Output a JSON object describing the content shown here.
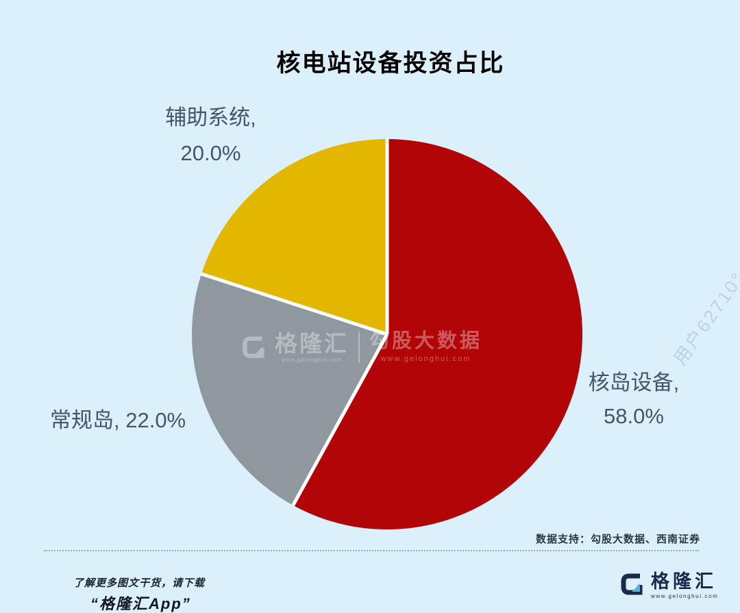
{
  "title": "核电站设备投资占比",
  "chart_data": {
    "type": "pie",
    "title": "核电站设备投资占比",
    "categories": [
      "核岛设备",
      "常规岛",
      "辅助系统"
    ],
    "values": [
      58.0,
      22.0,
      20.0
    ],
    "colors": [
      "#B10507",
      "#90989F",
      "#E3B700"
    ],
    "start_angle_deg_from_top": 0,
    "direction": "clockwise",
    "separator_color": "#FFFFFF",
    "background": "#DCF0FB",
    "label_color": "#44546A",
    "labels": {
      "auxiliary_line1": "辅助系统,",
      "auxiliary_line2": "20.0%",
      "conventional": "常规岛, 22.0%",
      "nuclear_line1": "核岛设备,",
      "nuclear_line2": "58.0%"
    },
    "legend": "none"
  },
  "watermark_center": {
    "brand": "格隆汇",
    "brand_url": "www.gelonghui.com",
    "partner": "勾股大数据",
    "partner_url": "www.gelonghui.com"
  },
  "watermark_side": "用户62710°",
  "footer": {
    "data_support": "数据支持：勾股大数据、西南证券",
    "promo_line1": "了解更多图文干货，请下载",
    "promo_line2": "“格隆汇App”",
    "logo_text": "格隆汇",
    "logo_url": "www.gelonghui.com"
  },
  "colors": {
    "background": "#DCF0FB",
    "red": "#B10507",
    "gray": "#90989F",
    "yellow": "#E3B700",
    "label": "#44546A",
    "navy": "#1B2A4A",
    "logo_teal": "#62ADDB"
  }
}
